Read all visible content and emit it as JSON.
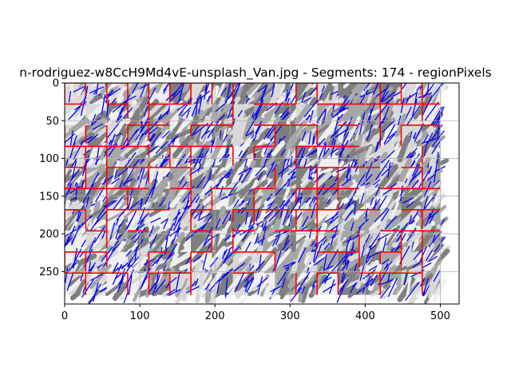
{
  "chart_data": {
    "type": "heatmap",
    "title": "n-rodriguez-w8CcH9Md4vE-unsplash_Van.jpg - Segments: 174 - regionPixels",
    "xlabel": "",
    "ylabel": "",
    "x_ticks": [
      0,
      100,
      200,
      300,
      400,
      500
    ],
    "y_ticks": [
      0,
      50,
      100,
      150,
      200,
      250
    ],
    "xlim": [
      0,
      525
    ],
    "ylim": [
      293,
      0
    ],
    "image_extent": [
      0,
      500,
      0,
      281
    ],
    "grid": true,
    "segment_grid": {
      "col_boundaries": [
        0,
        28,
        56,
        84,
        112,
        140,
        168,
        196,
        224,
        252,
        280,
        308,
        336,
        364,
        392,
        420,
        448,
        476,
        500
      ],
      "row_boundaries": [
        0,
        28,
        56,
        84,
        112,
        140,
        168,
        196,
        224,
        252,
        281
      ],
      "boundary_color": "#ff0000",
      "line_color": "#0000ff",
      "fill_colors": [
        "#f0f0f0",
        "#d9d9d9",
        "#a6a6a6",
        "#7f7f7f"
      ]
    }
  }
}
